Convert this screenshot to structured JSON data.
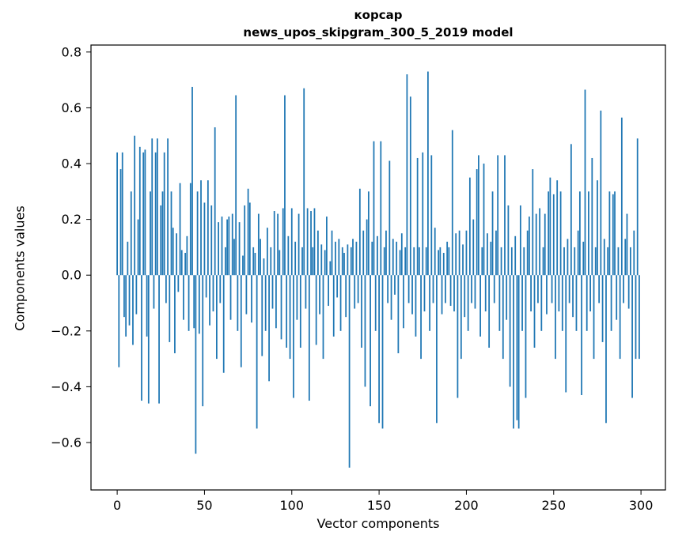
{
  "figure": {
    "title_line1": "корсар",
    "title_line2": "news_upos_skipgram_300_5_2019 model",
    "xlabel": "Vector components",
    "ylabel": "Components values"
  },
  "chart_data": {
    "type": "bar",
    "title": "корсар",
    "subtitle": "news_upos_skipgram_300_5_2019 model",
    "xlabel": "Vector components",
    "ylabel": "Components values",
    "xlim": [
      -15,
      314
    ],
    "ylim": [
      -0.77,
      0.825
    ],
    "xticks": [
      0,
      50,
      100,
      150,
      200,
      250,
      300
    ],
    "yticks": [
      -0.6,
      -0.4,
      -0.2,
      0.0,
      0.2,
      0.4,
      0.6,
      0.8
    ],
    "grid": false,
    "legend": "none",
    "bar_color": "#1f77b4",
    "n_components": 300,
    "values": [
      0.44,
      -0.33,
      0.38,
      0.44,
      -0.15,
      -0.22,
      0.12,
      -0.18,
      0.3,
      -0.25,
      0.5,
      -0.14,
      0.2,
      0.46,
      -0.45,
      0.44,
      0.45,
      -0.22,
      -0.46,
      0.3,
      0.49,
      -0.12,
      0.44,
      0.49,
      -0.46,
      0.25,
      0.3,
      0.44,
      -0.1,
      0.49,
      -0.24,
      0.3,
      0.17,
      -0.28,
      0.15,
      -0.06,
      0.33,
      0.09,
      -0.16,
      0.08,
      0.14,
      -0.2,
      0.33,
      0.675,
      -0.19,
      -0.64,
      0.3,
      -0.21,
      0.34,
      -0.47,
      0.26,
      -0.08,
      0.34,
      -0.18,
      0.25,
      -0.13,
      0.53,
      -0.3,
      0.19,
      -0.1,
      0.21,
      -0.35,
      0.1,
      0.2,
      0.21,
      -0.16,
      0.22,
      0.13,
      0.645,
      -0.2,
      0.19,
      -0.33,
      0.07,
      0.25,
      -0.14,
      0.31,
      0.26,
      -0.17,
      0.1,
      0.08,
      -0.55,
      0.22,
      0.13,
      -0.29,
      0.06,
      -0.2,
      0.17,
      -0.38,
      0.1,
      -0.12,
      0.23,
      -0.19,
      0.22,
      0.09,
      -0.23,
      0.24,
      0.645,
      -0.26,
      0.14,
      -0.3,
      0.24,
      -0.44,
      0.12,
      -0.16,
      0.22,
      -0.26,
      0.1,
      0.67,
      -0.12,
      0.24,
      -0.45,
      0.23,
      0.1,
      0.24,
      -0.25,
      0.16,
      -0.14,
      0.11,
      -0.3,
      0.09,
      0.21,
      -0.11,
      0.05,
      0.16,
      -0.22,
      0.12,
      -0.08,
      0.13,
      -0.2,
      0.1,
      0.08,
      -0.15,
      0.11,
      -0.69,
      0.1,
      0.13,
      -0.12,
      0.12,
      -0.1,
      0.31,
      -0.26,
      0.16,
      -0.4,
      0.2,
      0.3,
      -0.47,
      0.12,
      0.48,
      -0.2,
      0.14,
      -0.53,
      0.48,
      -0.55,
      0.1,
      0.16,
      -0.1,
      0.41,
      -0.16,
      0.13,
      -0.07,
      0.12,
      -0.28,
      0.09,
      0.15,
      -0.19,
      0.1,
      0.72,
      -0.1,
      0.64,
      -0.14,
      0.1,
      -0.22,
      0.42,
      0.1,
      -0.3,
      0.44,
      -0.13,
      0.1,
      0.73,
      -0.2,
      0.43,
      -0.1,
      0.17,
      -0.53,
      0.09,
      0.1,
      -0.14,
      0.08,
      -0.1,
      0.12,
      0.1,
      -0.11,
      0.52,
      -0.13,
      0.15,
      -0.44,
      0.16,
      -0.3,
      0.11,
      -0.15,
      0.16,
      -0.2,
      0.35,
      -0.1,
      0.2,
      -0.12,
      0.38,
      0.43,
      -0.22,
      0.1,
      0.4,
      -0.13,
      0.15,
      -0.26,
      0.12,
      0.3,
      -0.1,
      0.16,
      0.43,
      -0.2,
      0.1,
      -0.3,
      0.43,
      -0.16,
      0.25,
      -0.4,
      0.1,
      -0.55,
      0.14,
      -0.52,
      -0.55,
      0.25,
      -0.2,
      0.1,
      -0.44,
      0.16,
      0.21,
      -0.13,
      0.38,
      -0.26,
      0.22,
      -0.1,
      0.24,
      -0.2,
      0.1,
      0.22,
      -0.14,
      0.3,
      0.35,
      -0.1,
      0.29,
      -0.3,
      0.34,
      -0.13,
      0.3,
      -0.2,
      0.1,
      -0.42,
      0.13,
      -0.1,
      0.47,
      -0.15,
      0.1,
      -0.2,
      0.16,
      0.3,
      -0.43,
      0.12,
      0.665,
      -0.2,
      0.3,
      -0.13,
      0.42,
      -0.3,
      0.1,
      0.34,
      -0.1,
      0.59,
      -0.24,
      0.13,
      -0.53,
      0.1,
      0.3,
      -0.2,
      0.29,
      0.3,
      -0.16,
      0.1,
      -0.3,
      0.565,
      -0.1,
      0.13,
      0.22,
      -0.12,
      0.1,
      -0.44,
      0.16,
      -0.3,
      0.49,
      -0.3
    ]
  }
}
